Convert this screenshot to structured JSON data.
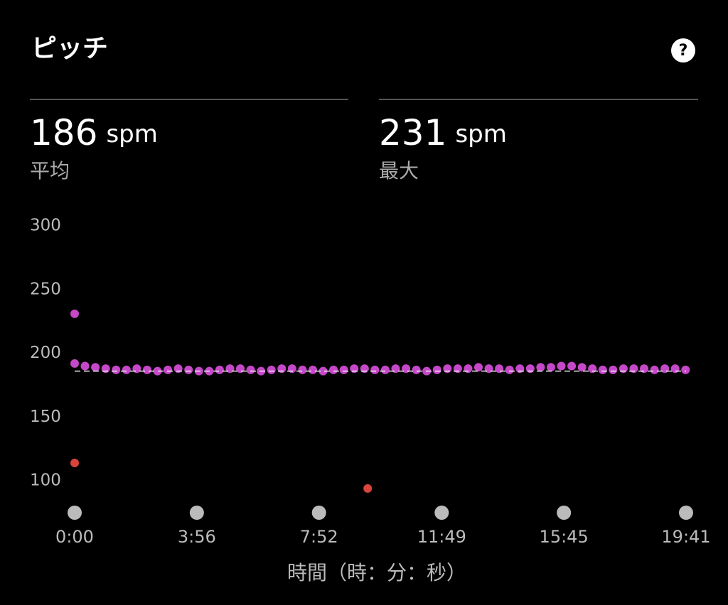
{
  "header": {
    "title": "ピッチ",
    "help": "?"
  },
  "stats": [
    {
      "value": "186",
      "unit": "spm",
      "label": "平均"
    },
    {
      "value": "231",
      "unit": "spm",
      "label": "最大"
    }
  ],
  "chart_data": {
    "type": "scatter",
    "xlabel": "時間（時：分：秒）",
    "average": 186,
    "xlim": [
      0,
      1181
    ],
    "ylim": [
      80,
      300
    ],
    "xticks": [
      {
        "value": 0,
        "label": "0:00"
      },
      {
        "value": 236,
        "label": "3:56"
      },
      {
        "value": 472,
        "label": "7:52"
      },
      {
        "value": 709,
        "label": "11:49"
      },
      {
        "value": 945,
        "label": "15:45"
      },
      {
        "value": 1181,
        "label": "19:41"
      }
    ],
    "yticks": [
      100,
      150,
      200,
      250,
      300
    ],
    "series": [
      {
        "color": "#c548c9",
        "x": [
          0,
          0,
          20,
          40,
          60,
          80,
          100,
          120,
          140,
          160,
          180,
          200,
          220,
          240,
          260,
          280,
          300,
          320,
          340,
          360,
          380,
          400,
          420,
          440,
          460,
          480,
          500,
          520,
          540,
          560,
          580,
          600,
          620,
          640,
          660,
          680,
          700,
          720,
          740,
          760,
          780,
          800,
          820,
          840,
          860,
          880,
          900,
          920,
          940,
          960,
          980,
          1000,
          1020,
          1040,
          1060,
          1080,
          1100,
          1120,
          1140,
          1160,
          1180
        ],
        "values": [
          231,
          192,
          190,
          189,
          188,
          187,
          187,
          188,
          187,
          186,
          187,
          188,
          187,
          186,
          186,
          187,
          188,
          188,
          187,
          186,
          187,
          188,
          188,
          187,
          187,
          186,
          187,
          187,
          188,
          188,
          187,
          187,
          188,
          188,
          187,
          186,
          187,
          188,
          188,
          188,
          189,
          188,
          188,
          187,
          188,
          188,
          189,
          189,
          190,
          190,
          189,
          188,
          187,
          187,
          188,
          188,
          188,
          187,
          188,
          188,
          187
        ]
      },
      {
        "color": "#d9443b",
        "x": [
          0,
          566
        ],
        "values": [
          114,
          94
        ]
      }
    ]
  }
}
